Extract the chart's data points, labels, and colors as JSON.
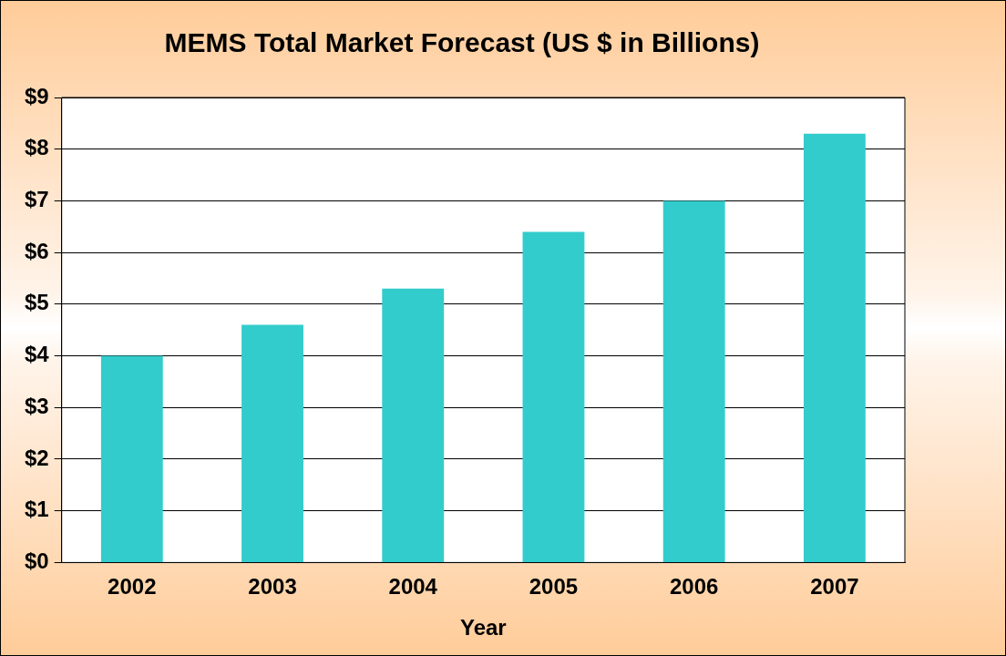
{
  "chart_data": {
    "type": "bar",
    "title": "MEMS Total Market Forecast (US $ in Billions)",
    "xlabel": "Year",
    "categories": [
      "2002",
      "2003",
      "2004",
      "2005",
      "2006",
      "2007"
    ],
    "values": [
      4.0,
      4.6,
      5.3,
      6.4,
      7.0,
      8.3
    ],
    "color": "#33cccc",
    "ylim": [
      0,
      9
    ],
    "yticks": [
      {
        "value": 0,
        "label": "$0"
      },
      {
        "value": 1,
        "label": "$1"
      },
      {
        "value": 2,
        "label": "$2"
      },
      {
        "value": 3,
        "label": "$3"
      },
      {
        "value": 4,
        "label": "$4"
      },
      {
        "value": 5,
        "label": "$5"
      },
      {
        "value": 6,
        "label": "$6"
      },
      {
        "value": 7,
        "label": "$7"
      },
      {
        "value": 8,
        "label": "$8"
      },
      {
        "value": 9,
        "label": "$9"
      }
    ],
    "grid": "y",
    "legend": false
  }
}
